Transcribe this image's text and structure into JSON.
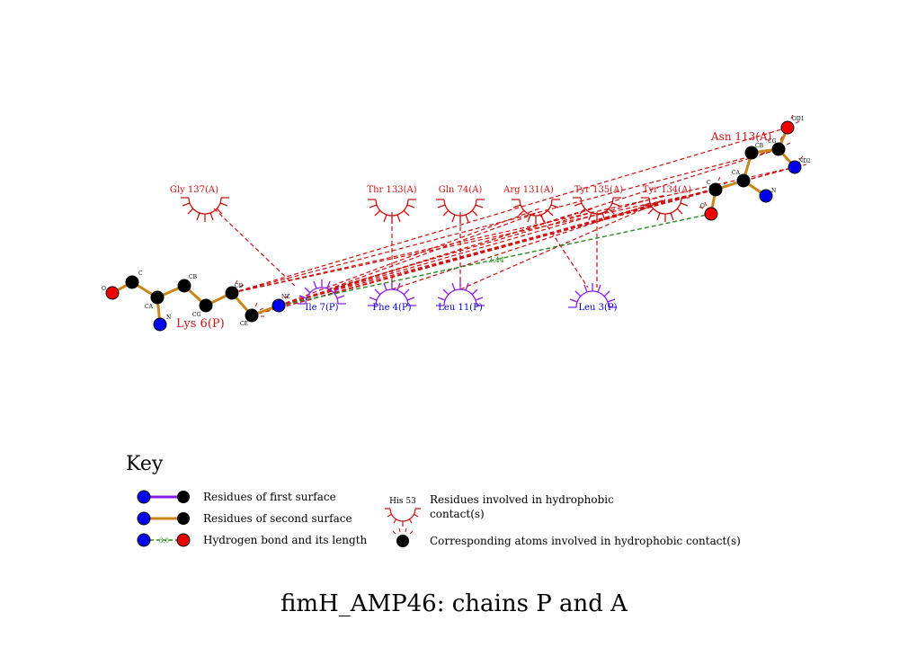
{
  "title": "fimH_AMP46: chains P and A",
  "key_title": "Key",
  "ligand_residue": "Lys 6(P)",
  "ligand_atoms": [
    "O",
    "C",
    "CA",
    "N",
    "CB",
    "CG",
    "CD",
    "CE",
    "NZ"
  ],
  "partner_residue": "Asn 113(A)",
  "partner_atoms": [
    "OD1",
    "CB",
    "CG",
    "ND2",
    "CA",
    "N",
    "C",
    "O"
  ],
  "hbond_length": "2.44",
  "hydrophobic_A": [
    "Gly 137(A)",
    "Thr 133(A)",
    "Gln 74(A)",
    "Arg 131(A)",
    "Tyr 135(A)",
    "Tyr 134(A)"
  ],
  "hydrophobic_P": [
    "Ile 7(P)",
    "Phe 4(P)",
    "Leu 11(P)",
    "Leu 3(P)"
  ],
  "key": {
    "first_surface": "Residues of first surface",
    "second_surface": "Residues of second surface",
    "hbond": "Hydrogen bond and its length",
    "hbond_example": "3.0",
    "hydrophobic_example": "His 53",
    "hydrophobic_line1": "Residues involved in hydrophobic",
    "hydrophobic_line2": "contact(s)",
    "atoms": "Corresponding atoms involved in hydrophobic contact(s)"
  },
  "colors": {
    "bond": "#c8861a",
    "first_surface": "#8a1ce8",
    "red_res": "#cc1111",
    "blue_res": "#0000cc",
    "hbond": "#2a8a22",
    "contact": "#cc1111",
    "atom_N": "#0000ee",
    "atom_O": "#ee0000",
    "atom_C": "#000000"
  }
}
